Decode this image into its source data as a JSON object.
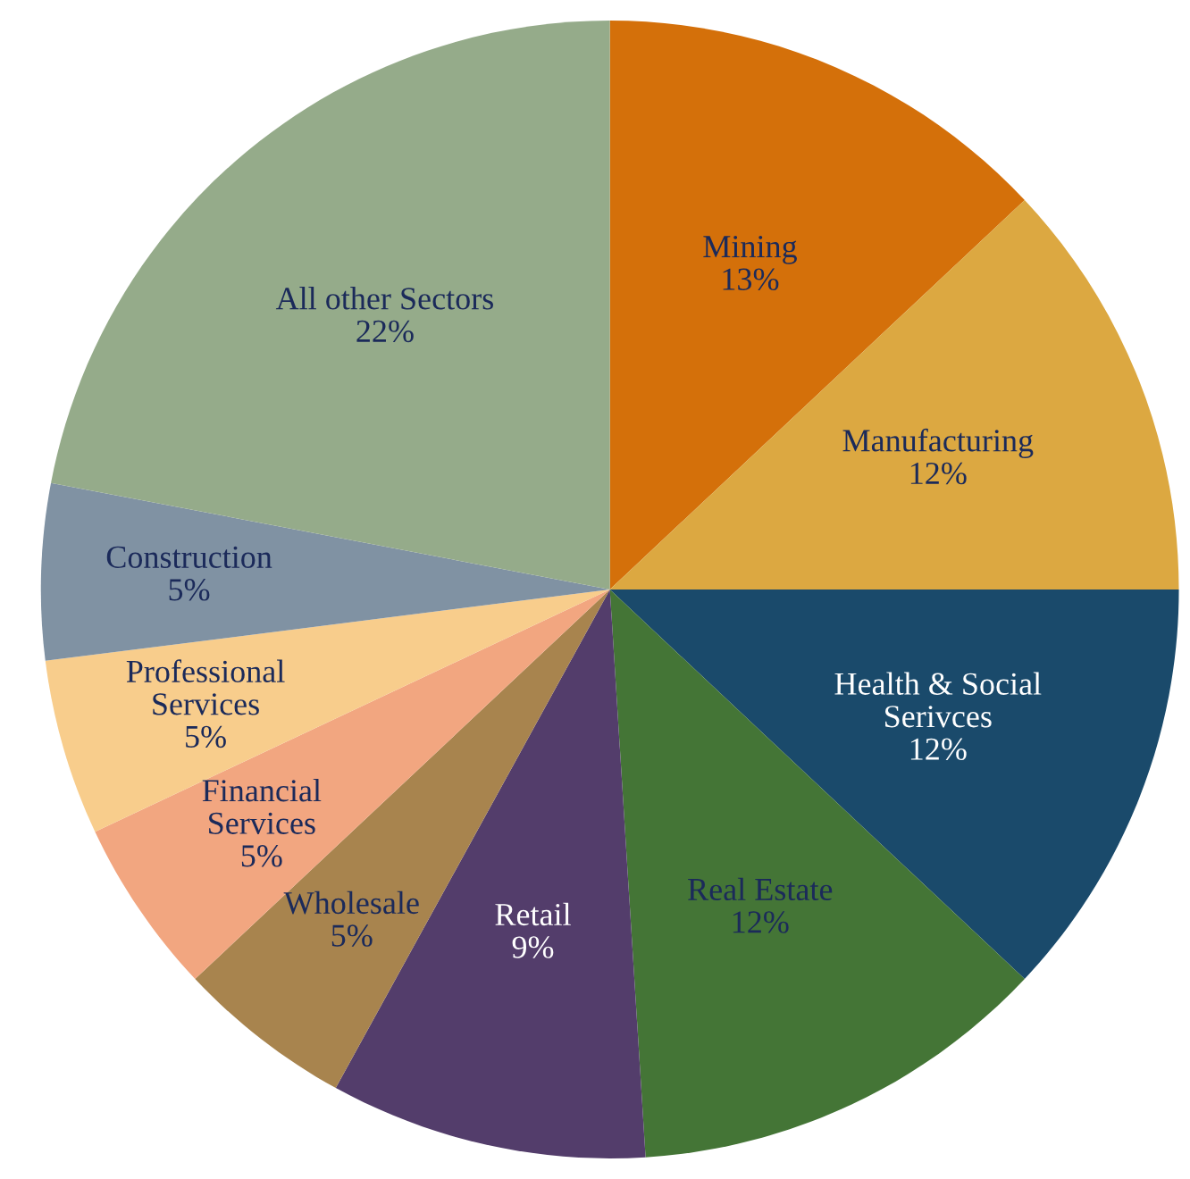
{
  "chart_data": {
    "type": "pie",
    "categories": [
      "Mining",
      "Manufacturing",
      "Health & Social\nSerivces",
      "Real Estate",
      "Retail",
      "Wholesale",
      "Financial\nServices",
      "Professional\nServices",
      "Construction",
      "All other Sectors"
    ],
    "values": [
      13,
      12,
      12,
      12,
      9,
      5,
      5,
      5,
      5,
      22
    ],
    "colors": [
      "#d4700a",
      "#dca841",
      "#1a4a6b",
      "#447536",
      "#533d6b",
      "#a8844e",
      "#f2a680",
      "#f8cd8c",
      "#8092a3",
      "#95ab8a"
    ],
    "value_labels": [
      "13%",
      "12%",
      "12%",
      "12%",
      "9%",
      "5%",
      "5%",
      "5%",
      "5%",
      "22%"
    ],
    "legend": false
  }
}
